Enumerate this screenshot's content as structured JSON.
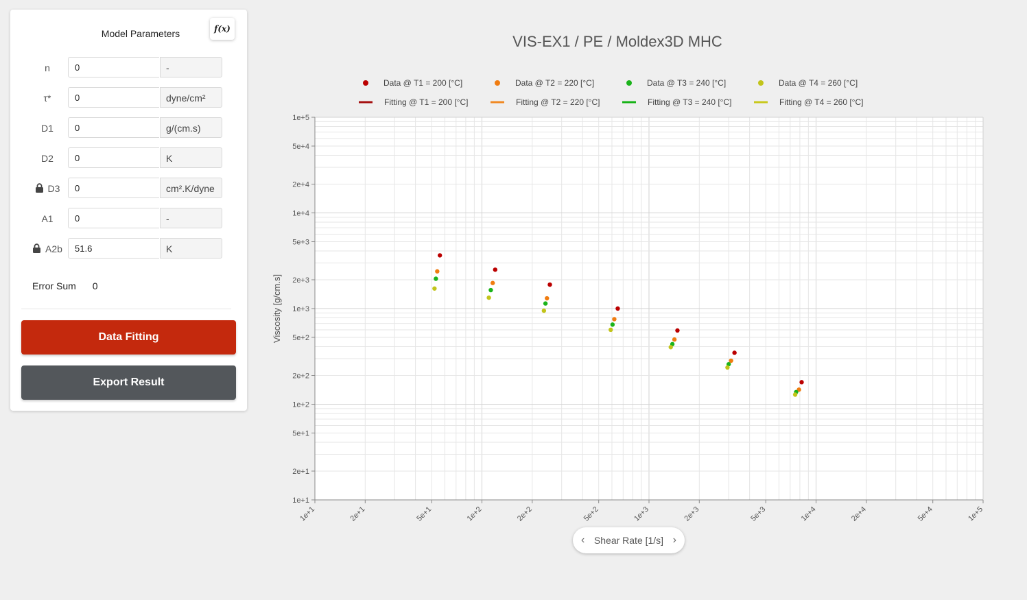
{
  "panel": {
    "title": "Model Parameters",
    "fx_button": "f(x)",
    "params": [
      {
        "label": "n",
        "value": "0",
        "unit": "-",
        "locked": false
      },
      {
        "label": "τ*",
        "value": "0",
        "unit": "dyne/cm²",
        "locked": false
      },
      {
        "label": "D1",
        "value": "0",
        "unit": "g/(cm.s)",
        "locked": false
      },
      {
        "label": "D2",
        "value": "0",
        "unit": "K",
        "locked": false
      },
      {
        "label": "D3",
        "value": "0",
        "unit": "cm².K/dyne",
        "locked": true
      },
      {
        "label": "A1",
        "value": "0",
        "unit": "-",
        "locked": false
      },
      {
        "label": "A2b",
        "value": "51.6",
        "unit": "K",
        "locked": true
      }
    ],
    "error_sum_label": "Error Sum",
    "error_sum_value": "0",
    "fit_button": "Data Fitting",
    "export_button": "Export Result"
  },
  "x_axis_nav": {
    "label": "Shear Rate [1/s]",
    "prev": "‹",
    "next": "›"
  },
  "chart_data": {
    "type": "scatter",
    "title": "VIS-EX1 / PE / Moldex3D MHC",
    "xlabel": "Shear Rate [1/s]",
    "ylabel": "Viscosity [g/cm.s]",
    "xscale": "log",
    "yscale": "log",
    "xlim": [
      10,
      100000
    ],
    "ylim": [
      10,
      100000
    ],
    "x_ticks": [
      "1e+1",
      "2e+1",
      "5e+1",
      "1e+2",
      "2e+2",
      "5e+2",
      "1e+3",
      "2e+3",
      "5e+3",
      "1e+4",
      "2e+4",
      "5e+4",
      "1e+5"
    ],
    "x_tick_values": [
      10,
      20,
      50,
      100,
      200,
      500,
      1000,
      2000,
      5000,
      10000,
      20000,
      50000,
      100000
    ],
    "y_ticks": [
      "1e+5",
      "5e+4",
      "2e+4",
      "1e+4",
      "5e+3",
      "2e+3",
      "1e+3",
      "5e+2",
      "2e+2",
      "1e+2",
      "5e+1",
      "2e+1",
      "1e+1"
    ],
    "y_tick_values": [
      100000,
      50000,
      20000,
      10000,
      5000,
      2000,
      1000,
      500,
      200,
      100,
      50,
      20,
      10
    ],
    "grid": true,
    "legend_position": "top",
    "series": [
      {
        "name": "Data @ T1 = 200 [°C]",
        "kind": "data",
        "color": "#bb0000",
        "x": [
          56,
          120,
          255,
          650,
          1480,
          3250,
          8200
        ],
        "y": [
          3600,
          2550,
          1780,
          1000,
          590,
          345,
          170
        ]
      },
      {
        "name": "Data @ T2 = 220 [°C]",
        "kind": "data",
        "color": "#f07c10",
        "x": [
          54,
          116,
          245,
          620,
          1420,
          3100,
          7900
        ],
        "y": [
          2450,
          1850,
          1280,
          775,
          475,
          285,
          142
        ]
      },
      {
        "name": "Data @ T3 = 240 [°C]",
        "kind": "data",
        "color": "#1bb31b",
        "x": [
          53,
          113,
          240,
          605,
          1380,
          3000,
          7600
        ],
        "y": [
          2050,
          1560,
          1130,
          680,
          425,
          262,
          134
        ]
      },
      {
        "name": "Data @ T4 = 260 [°C]",
        "kind": "data",
        "color": "#c2c41a",
        "x": [
          52,
          110,
          235,
          590,
          1350,
          2950,
          7500
        ],
        "y": [
          1620,
          1300,
          950,
          600,
          395,
          242,
          126
        ]
      },
      {
        "name": "Fitting @ T1 = 200 [°C]",
        "kind": "fit",
        "color": "#a51111",
        "x": [],
        "y": []
      },
      {
        "name": "Fitting @ T2 = 220 [°C]",
        "kind": "fit",
        "color": "#f08a24",
        "x": [],
        "y": []
      },
      {
        "name": "Fitting @ T3 = 240 [°C]",
        "kind": "fit",
        "color": "#17b317",
        "x": [],
        "y": []
      },
      {
        "name": "Fitting @ T4 = 260 [°C]",
        "kind": "fit",
        "color": "#c8c81e",
        "x": [],
        "y": []
      }
    ]
  }
}
